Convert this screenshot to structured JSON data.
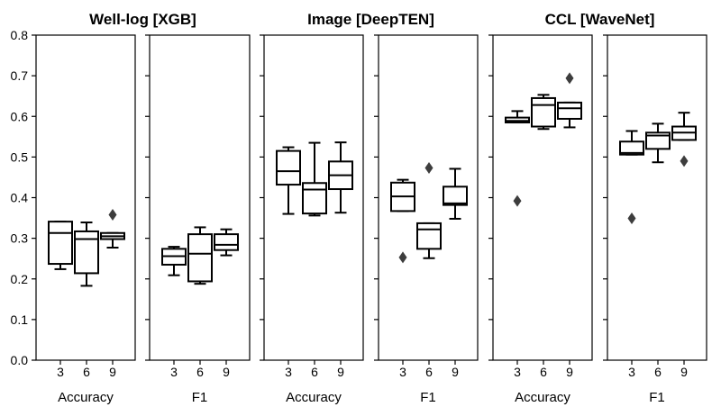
{
  "chart_data": {
    "type": "box",
    "ylim": [
      0.0,
      0.8
    ],
    "yticks": [
      "0.0",
      "0.1",
      "0.2",
      "0.3",
      "0.4",
      "0.5",
      "0.6",
      "0.7",
      "0.8"
    ],
    "categories": [
      "3",
      "6",
      "9"
    ],
    "groups": [
      {
        "title": "Well-log [XGB]",
        "panels": [
          {
            "xlabel": "Accuracy",
            "boxes": [
              {
                "cat": "3",
                "whislo": 0.224,
                "q1": 0.237,
                "med": 0.313,
                "q3": 0.341,
                "whishi": 0.341,
                "fliers": []
              },
              {
                "cat": "6",
                "whislo": 0.183,
                "q1": 0.214,
                "med": 0.298,
                "q3": 0.317,
                "whishi": 0.339,
                "fliers": []
              },
              {
                "cat": "9",
                "whislo": 0.277,
                "q1": 0.298,
                "med": 0.305,
                "q3": 0.313,
                "whishi": 0.313,
                "fliers": [
                  0.358
                ]
              }
            ]
          },
          {
            "xlabel": "F1",
            "boxes": [
              {
                "cat": "3",
                "whislo": 0.209,
                "q1": 0.235,
                "med": 0.256,
                "q3": 0.274,
                "whishi": 0.279,
                "fliers": []
              },
              {
                "cat": "6",
                "whislo": 0.188,
                "q1": 0.194,
                "med": 0.262,
                "q3": 0.31,
                "whishi": 0.327,
                "fliers": []
              },
              {
                "cat": "9",
                "whislo": 0.258,
                "q1": 0.271,
                "med": 0.284,
                "q3": 0.31,
                "whishi": 0.322,
                "fliers": []
              }
            ]
          }
        ]
      },
      {
        "title": "Image [DeepTEN]",
        "panels": [
          {
            "xlabel": "Accuracy",
            "boxes": [
              {
                "cat": "3",
                "whislo": 0.36,
                "q1": 0.432,
                "med": 0.465,
                "q3": 0.515,
                "whishi": 0.524,
                "fliers": []
              },
              {
                "cat": "6",
                "whislo": 0.356,
                "q1": 0.361,
                "med": 0.42,
                "q3": 0.436,
                "whishi": 0.535,
                "fliers": []
              },
              {
                "cat": "9",
                "whislo": 0.363,
                "q1": 0.421,
                "med": 0.455,
                "q3": 0.489,
                "whishi": 0.536,
                "fliers": []
              }
            ]
          },
          {
            "xlabel": "F1",
            "boxes": [
              {
                "cat": "3",
                "whislo": 0.367,
                "q1": 0.367,
                "med": 0.403,
                "q3": 0.437,
                "whishi": 0.444,
                "fliers": [
                  0.253
                ]
              },
              {
                "cat": "6",
                "whislo": 0.251,
                "q1": 0.274,
                "med": 0.322,
                "q3": 0.337,
                "whishi": 0.337,
                "fliers": [
                  0.473
                ]
              },
              {
                "cat": "9",
                "whislo": 0.348,
                "q1": 0.382,
                "med": 0.386,
                "q3": 0.427,
                "whishi": 0.471,
                "fliers": []
              }
            ]
          }
        ]
      },
      {
        "title": "CCL [WaveNet]",
        "panels": [
          {
            "xlabel": "Accuracy",
            "boxes": [
              {
                "cat": "3",
                "whislo": 0.585,
                "q1": 0.585,
                "med": 0.589,
                "q3": 0.597,
                "whishi": 0.613,
                "fliers": [
                  0.392
                ]
              },
              {
                "cat": "6",
                "whislo": 0.569,
                "q1": 0.575,
                "med": 0.628,
                "q3": 0.645,
                "whishi": 0.653,
                "fliers": []
              },
              {
                "cat": "9",
                "whislo": 0.573,
                "q1": 0.594,
                "med": 0.62,
                "q3": 0.634,
                "whishi": 0.634,
                "fliers": [
                  0.694
                ]
              }
            ]
          },
          {
            "xlabel": "F1",
            "boxes": [
              {
                "cat": "3",
                "whislo": 0.506,
                "q1": 0.506,
                "med": 0.51,
                "q3": 0.538,
                "whishi": 0.564,
                "fliers": [
                  0.349
                ]
              },
              {
                "cat": "6",
                "whislo": 0.487,
                "q1": 0.52,
                "med": 0.553,
                "q3": 0.56,
                "whishi": 0.582,
                "fliers": []
              },
              {
                "cat": "9",
                "whislo": 0.542,
                "q1": 0.542,
                "med": 0.56,
                "q3": 0.575,
                "whishi": 0.609,
                "fliers": [
                  0.49
                ]
              }
            ]
          }
        ]
      }
    ]
  }
}
